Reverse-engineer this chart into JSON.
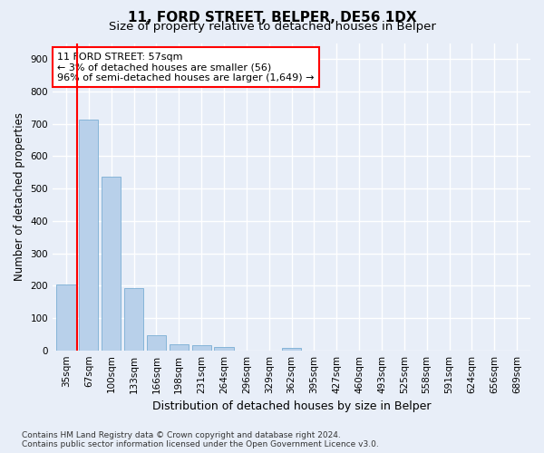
{
  "title": "11, FORD STREET, BELPER, DE56 1DX",
  "subtitle": "Size of property relative to detached houses in Belper",
  "xlabel": "Distribution of detached houses by size in Belper",
  "ylabel": "Number of detached properties",
  "categories": [
    "35sqm",
    "67sqm",
    "100sqm",
    "133sqm",
    "166sqm",
    "198sqm",
    "231sqm",
    "264sqm",
    "296sqm",
    "329sqm",
    "362sqm",
    "395sqm",
    "427sqm",
    "460sqm",
    "493sqm",
    "525sqm",
    "558sqm",
    "591sqm",
    "624sqm",
    "656sqm",
    "689sqm"
  ],
  "values": [
    203,
    714,
    537,
    193,
    47,
    20,
    15,
    11,
    0,
    0,
    7,
    0,
    0,
    0,
    0,
    0,
    0,
    0,
    0,
    0,
    0
  ],
  "bar_color": "#b8d0ea",
  "bar_edge_color": "#7aaed4",
  "annotation_text_line1": "11 FORD STREET: 57sqm",
  "annotation_text_line2": "← 3% of detached houses are smaller (56)",
  "annotation_text_line3": "96% of semi-detached houses are larger (1,649) →",
  "red_line_x": 0.5,
  "ylim": [
    0,
    950
  ],
  "yticks": [
    0,
    100,
    200,
    300,
    400,
    500,
    600,
    700,
    800,
    900
  ],
  "footer_line1": "Contains HM Land Registry data © Crown copyright and database right 2024.",
  "footer_line2": "Contains public sector information licensed under the Open Government Licence v3.0.",
  "bg_color": "#e8eef8",
  "plot_bg_color": "#e8eef8",
  "grid_color": "#ffffff",
  "title_fontsize": 11,
  "subtitle_fontsize": 9.5,
  "axis_label_fontsize": 8.5,
  "tick_fontsize": 7.5,
  "footer_fontsize": 6.5
}
